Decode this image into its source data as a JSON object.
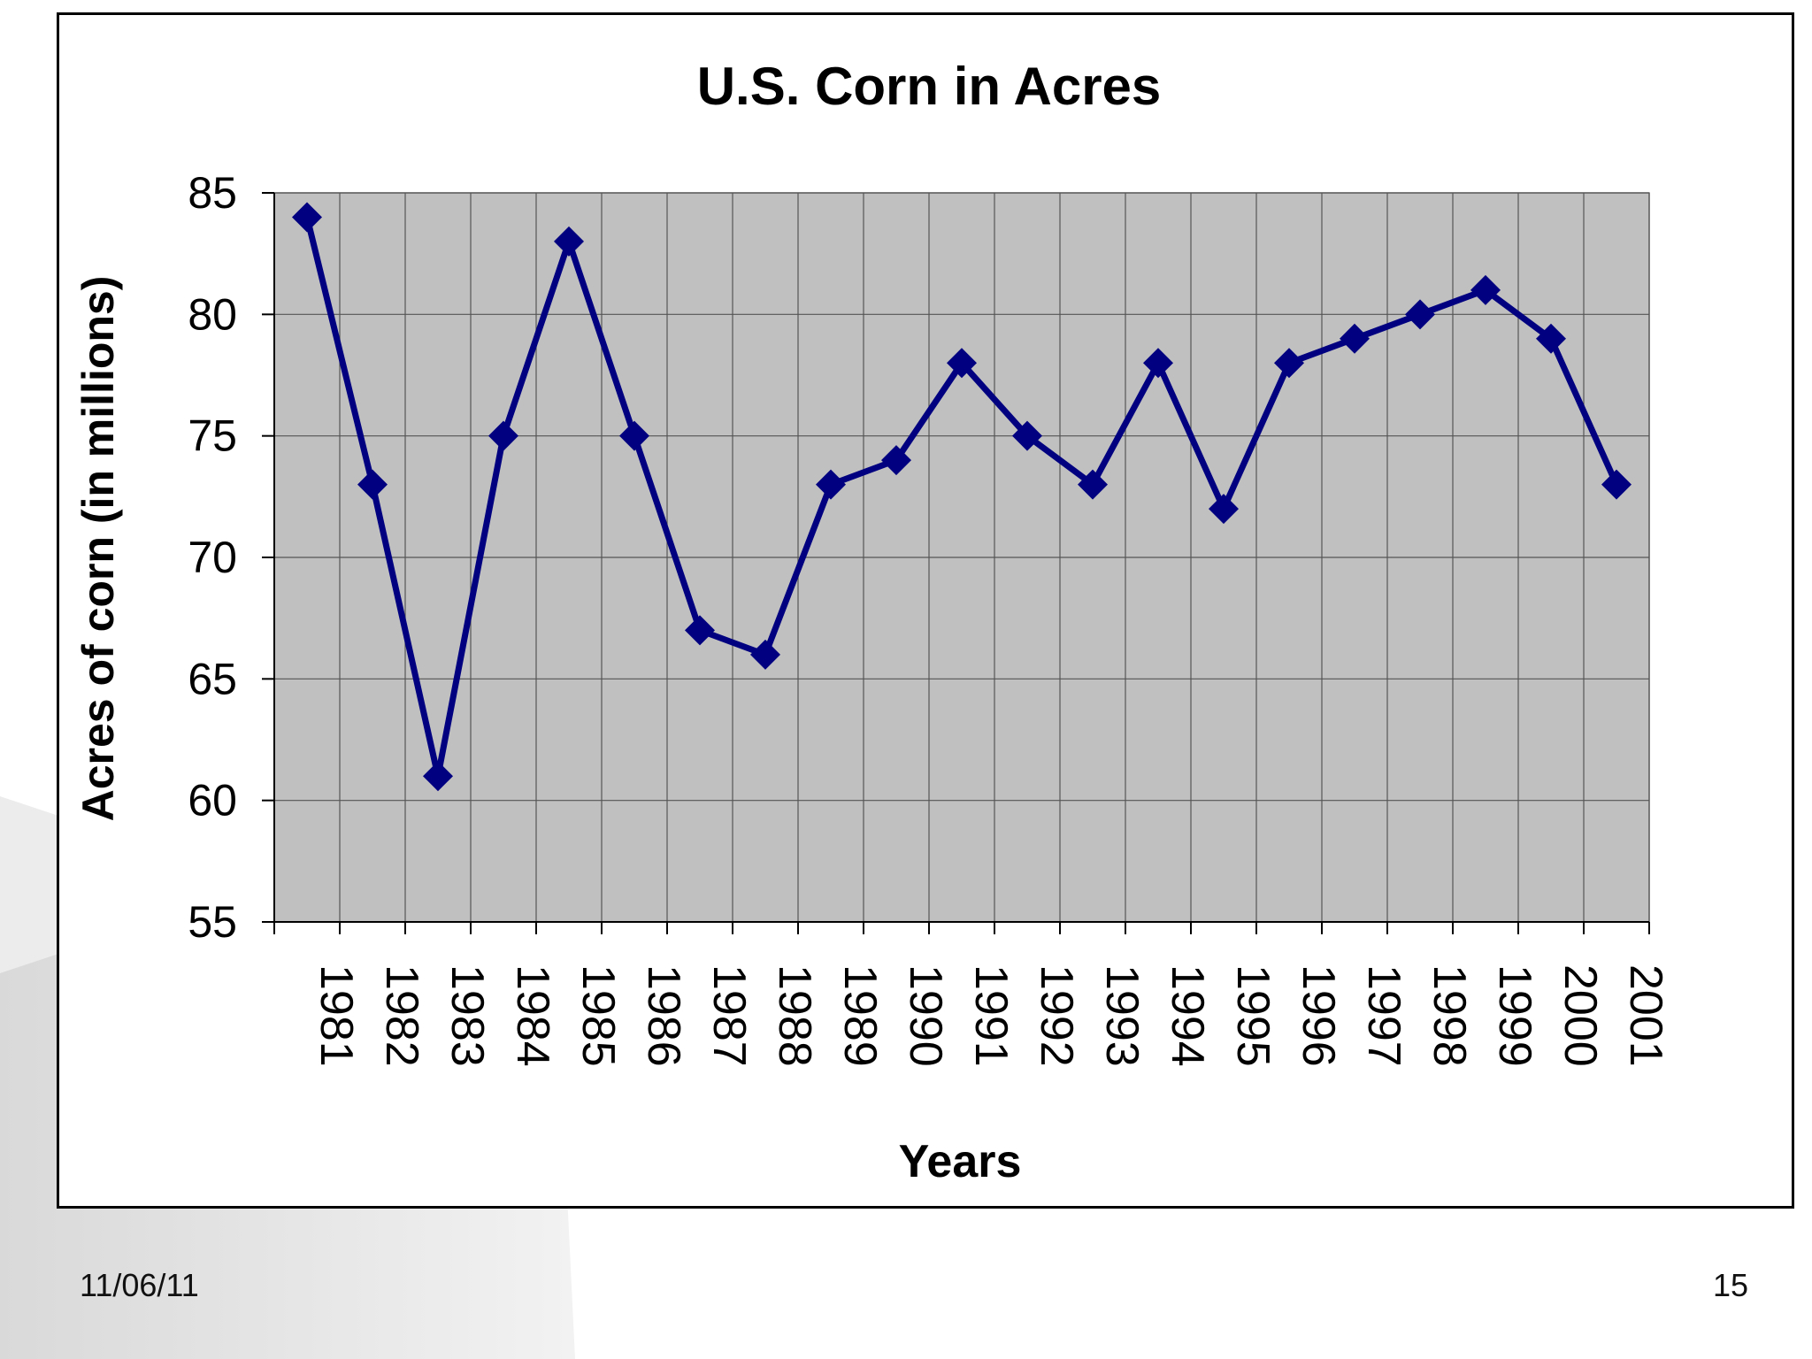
{
  "slide": {
    "date": "11/06/11",
    "page_number": "15"
  },
  "colors": {
    "plot_bg": "#c0c0c0",
    "series": "#000080",
    "grid": "#555555"
  },
  "chart_data": {
    "type": "line",
    "title": "U.S. Corn in Acres",
    "xlabel": "Years",
    "ylabel": "Acres of corn (in millions)",
    "ylim": [
      55,
      85
    ],
    "yticks": [
      55,
      60,
      65,
      70,
      75,
      80,
      85
    ],
    "grid": true,
    "categories": [
      "1981",
      "1982",
      "1983",
      "1984",
      "1985",
      "1986",
      "1987",
      "1988",
      "1989",
      "1990",
      "1991",
      "1992",
      "1993",
      "1994",
      "1995",
      "1996",
      "1997",
      "1998",
      "1999",
      "2000",
      "2001"
    ],
    "series": [
      {
        "marker": "diamond",
        "values": [
          84,
          73,
          61,
          75,
          83,
          75,
          67,
          66,
          73,
          74,
          78,
          75,
          73,
          78,
          72,
          78,
          79,
          80,
          81,
          79,
          73
        ]
      }
    ]
  }
}
